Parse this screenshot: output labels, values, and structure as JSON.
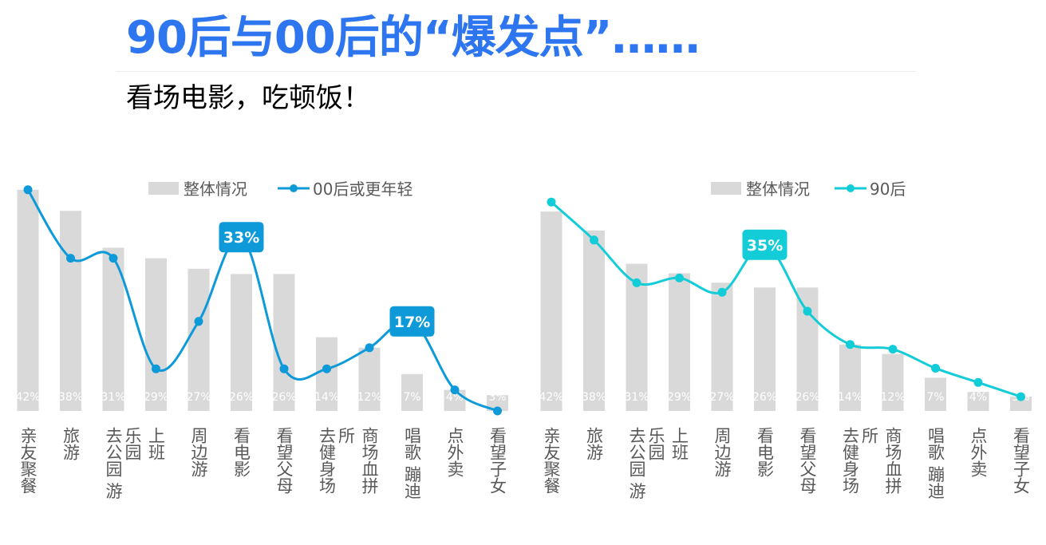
{
  "title": "90后与00后的“爆发点”……",
  "subtitle": "看场电影，吃顿饭！",
  "chart_data": [
    {
      "type": "bar+line",
      "categories": [
        "亲友聚餐",
        "旅游",
        "去公园 游乐园",
        "上班",
        "周边游",
        "看电影",
        "看望父母",
        "去健身场所",
        "商场血拼",
        "唱歌 蹦迪",
        "点外卖",
        "看望子女"
      ],
      "series": [
        {
          "name": "整体情况",
          "type": "bar",
          "values": [
            42,
            38,
            31,
            29,
            27,
            26,
            26,
            14,
            12,
            7,
            4,
            3
          ],
          "color": "#D9D9D9"
        },
        {
          "name": "00后或更年轻",
          "type": "line",
          "values": [
            42,
            29,
            29,
            8,
            17,
            33,
            8,
            8,
            12,
            17,
            4,
            0
          ],
          "color": "#0E9AD8"
        }
      ],
      "highlights": [
        {
          "index": 5,
          "label": "33%"
        },
        {
          "index": 9,
          "label": "17%"
        }
      ],
      "legend": "top"
    },
    {
      "type": "bar+line",
      "categories": [
        "亲友聚餐",
        "旅游",
        "去公园 游乐园",
        "上班",
        "周边游",
        "看电影",
        "看望父母",
        "去健身场所",
        "商场血拼",
        "唱歌 蹦迪",
        "点外卖",
        "看望子女"
      ],
      "series": [
        {
          "name": "整体情况",
          "type": "bar",
          "values": [
            42,
            38,
            31,
            29,
            27,
            26,
            26,
            14,
            12,
            7,
            4,
            3
          ],
          "color": "#D9D9D9"
        },
        {
          "name": "90后",
          "type": "line",
          "values": [
            44,
            36,
            27,
            28,
            25,
            35,
            21,
            14,
            13,
            9,
            6,
            3
          ],
          "color": "#12CCD8"
        }
      ],
      "highlights": [
        {
          "index": 5,
          "label": "35%"
        }
      ],
      "legend": "top"
    }
  ]
}
